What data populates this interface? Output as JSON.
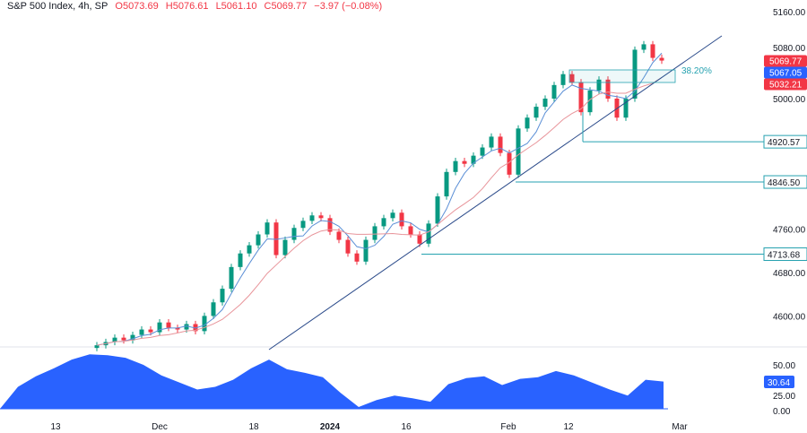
{
  "header": {
    "symbol": "S&P 500 Index, 4h, SP",
    "open": "O5073.69",
    "high": "H5076.61",
    "low": "L5061.10",
    "close": "C5069.77",
    "change": "−3.97 (−0.08%)"
  },
  "colors": {
    "up": "#089981",
    "down": "#f23645",
    "ma_fast": "#5b8fd6",
    "ma_slow": "#e8949a",
    "trend": "#2a4a8a",
    "level": "#26a2b0",
    "indicator": "#2962ff"
  },
  "price_axis": {
    "ticks": [
      "5160.00",
      "5080.00",
      "5000.00",
      "4760.00",
      "4680.00",
      "4600.00"
    ],
    "ylim": [
      4560,
      5160
    ]
  },
  "time_axis": {
    "ticks": [
      "13",
      "Dec",
      "18",
      "2024",
      "16",
      "Feb",
      "12",
      "Mar"
    ]
  },
  "price_tags": {
    "last": "5069.77",
    "ma_fast": "5067.05",
    "ma_slow": "5032.21"
  },
  "levels": [
    {
      "label": "4920.57",
      "value": 4920.57
    },
    {
      "label": "4846.50",
      "value": 4846.5
    },
    {
      "label": "4713.68",
      "value": 4713.68
    }
  ],
  "fib": {
    "label": "38.20%"
  },
  "indicator": {
    "ticks": [
      "50.00",
      "25.00",
      "0.00"
    ],
    "last": "30.64",
    "ylim": [
      0,
      60
    ],
    "values": [
      0,
      25,
      37,
      46,
      56,
      62,
      61,
      58,
      50,
      38,
      30,
      22,
      25,
      33,
      46,
      56,
      45,
      41,
      36,
      18,
      2,
      10,
      15,
      12,
      8,
      28,
      35,
      37,
      27,
      34,
      36,
      43,
      38,
      30,
      22,
      15,
      33,
      31
    ]
  },
  "chart_data": {
    "type": "candlestick",
    "title": "S&P 500 Index, 4h, SP",
    "ylim": [
      4560,
      5160
    ],
    "closes": [
      4546,
      4552,
      4560,
      4555,
      4565,
      4575,
      4570,
      4588,
      4578,
      4575,
      4585,
      4572,
      4600,
      4625,
      4650,
      4690,
      4715,
      4730,
      4750,
      4772,
      4712,
      4740,
      4762,
      4775,
      4785,
      4780,
      4755,
      4740,
      4715,
      4700,
      4740,
      4765,
      4780,
      4790,
      4765,
      4750,
      4733,
      4770,
      4820,
      4865,
      4885,
      4880,
      4895,
      4910,
      4930,
      4900,
      4860,
      4945,
      4965,
      4985,
      5000,
      5025,
      5045,
      5030,
      4975,
      5015,
      5035,
      5000,
      4965,
      5000,
      5090,
      5100,
      5075,
      5070
    ]
  }
}
